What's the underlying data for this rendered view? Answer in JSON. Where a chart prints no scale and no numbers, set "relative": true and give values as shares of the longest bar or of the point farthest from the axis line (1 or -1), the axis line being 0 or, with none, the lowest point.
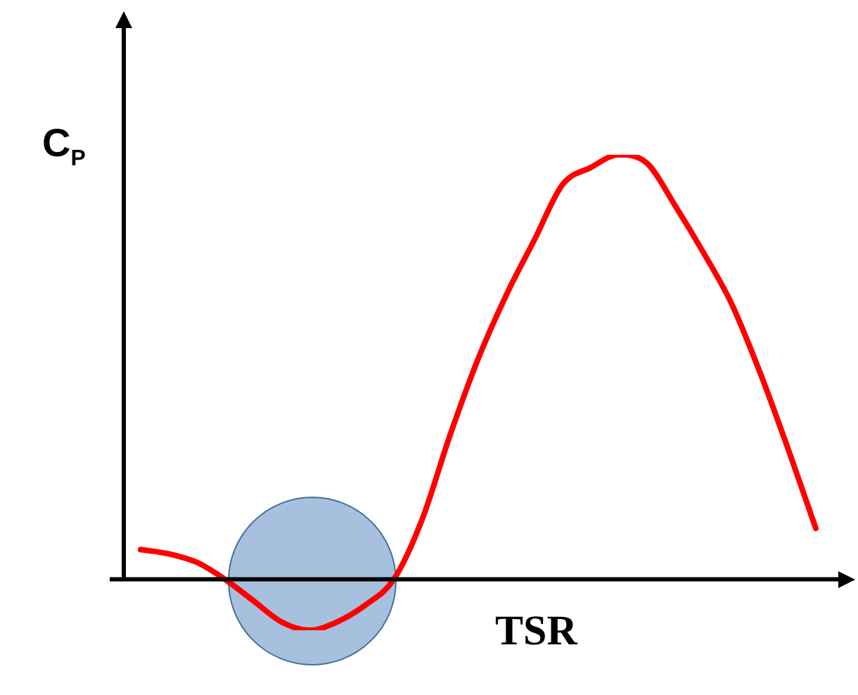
{
  "chart_data": {
    "type": "line",
    "relative": true,
    "xlabel": "TSR",
    "ylabel": "C$_{P}$",
    "color": "#ff0000",
    "marker": "none",
    "line_style": "solid",
    "legend": false,
    "categories": [
      null,
      null,
      null,
      null,
      null,
      null,
      null,
      null,
      null,
      null,
      null,
      null,
      null,
      null,
      null,
      null,
      null,
      null,
      null,
      null,
      null,
      null,
      null,
      null,
      null
    ],
    "values": [
      0.07,
      0.06,
      0.04,
      0,
      -0.05,
      -0.1,
      -0.12,
      -0.1,
      -0.06,
      0,
      0.14,
      0.34,
      0.52,
      0.67,
      0.8,
      0.93,
      0.97,
      1,
      0.98,
      0.88,
      0.77,
      0.65,
      0.49,
      0.31,
      0.12
    ]
  }
}
